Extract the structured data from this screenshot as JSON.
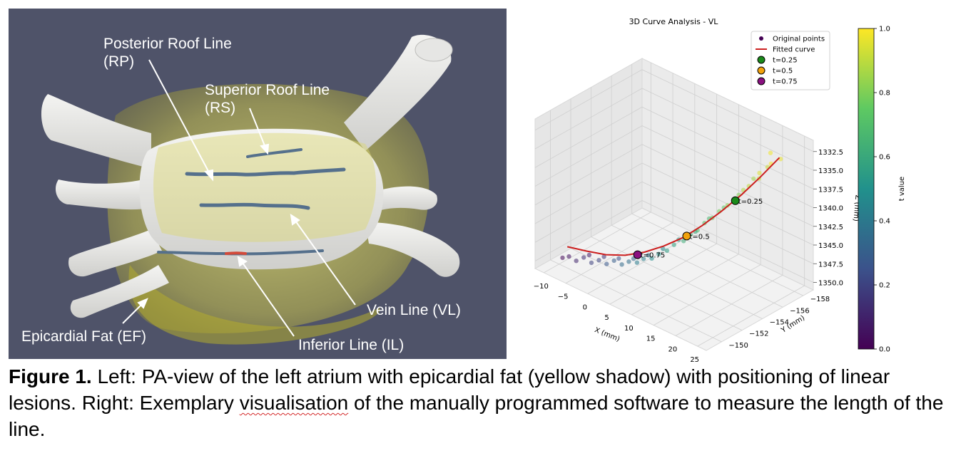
{
  "colors": {
    "render_background": "#4f5369",
    "atrium_surface": "#ededeb",
    "fat_overlay": "#d8d45a",
    "lesion_line": "#55708c",
    "lesion_highlight": "#d24a3a",
    "fitted_curve": "#cc1f1f"
  },
  "figure": {
    "annotations": [
      {
        "id": "rp",
        "lines": [
          "Posterior Roof Line",
          "(RP)"
        ]
      },
      {
        "id": "rs",
        "lines": [
          "Superior Roof Line",
          "(RS)"
        ]
      },
      {
        "id": "vl",
        "lines": [
          "Vein Line (VL)"
        ]
      },
      {
        "id": "il",
        "lines": [
          "Inferior Line (IL)"
        ]
      },
      {
        "id": "ef",
        "lines": [
          "Epicardial Fat (EF)"
        ]
      }
    ]
  },
  "chart_data": {
    "type": "scatter",
    "title": "3D Curve Analysis - VL",
    "xlabel": "X (mm)",
    "ylabel": "Y (mm)",
    "zlabel": "Z (mm)",
    "xlim": [
      -12,
      27
    ],
    "ylim": [
      -159,
      -148.5
    ],
    "zlim": [
      1331,
      1351
    ],
    "z_inverted": true,
    "x_ticks": [
      -10,
      -5,
      0,
      5,
      10,
      15,
      20,
      25
    ],
    "y_ticks": [
      -150,
      -152,
      -154,
      -156,
      -158
    ],
    "z_ticks": [
      "1332.5",
      "1335.0",
      "1337.5",
      "1340.0",
      "1342.5",
      "1345.0",
      "1347.5",
      "1350.0"
    ],
    "colormap": "viridis",
    "colorbar_label": "t value",
    "colorbar_ticks": [
      "0.0",
      "0.2",
      "0.4",
      "0.6",
      "0.8",
      "1.0"
    ],
    "grid": true,
    "legend_position": "top-right",
    "legend": [
      {
        "label": "Original points",
        "marker": "dot",
        "color": "#440154"
      },
      {
        "label": "Fitted curve",
        "marker": "line",
        "color": "#cc1f1f"
      },
      {
        "label": "t=0.25",
        "marker": "circle",
        "color": "#1a8a1a"
      },
      {
        "label": "t=0.5",
        "marker": "circle",
        "color": "#f2a20c"
      },
      {
        "label": "t=0.75",
        "marker": "circle",
        "color": "#8a1080"
      }
    ],
    "fitted_curve": {
      "x": [
        -10,
        -7,
        -4,
        -1,
        2,
        5,
        8,
        11,
        14,
        17,
        20,
        23
      ],
      "y": [
        -150.8,
        -151.4,
        -152.0,
        -152.6,
        -153.2,
        -153.8,
        -154.4,
        -155.0,
        -155.6,
        -156.2,
        -156.8,
        -157.4
      ],
      "z": [
        1349.3,
        1349.5,
        1349.6,
        1349.3,
        1348.5,
        1347.3,
        1345.8,
        1343.8,
        1341.5,
        1339.0,
        1336.2,
        1333.2
      ]
    },
    "markers": [
      {
        "label": "t=0.25",
        "t": 0.25,
        "x": 16.2,
        "y": -156.0,
        "z": 1339.8
      },
      {
        "label": "t=0.5",
        "t": 0.5,
        "x": 8.6,
        "y": -154.5,
        "z": 1345.5
      },
      {
        "label": "t=0.75",
        "t": 0.75,
        "x": 0.9,
        "y": -153.0,
        "z": 1349.0
      }
    ],
    "points": {
      "x": [
        22.0,
        21.2,
        22.8,
        20.3,
        19.5,
        21.0,
        18.6,
        17.8,
        19.2,
        16.5,
        15.6,
        17.0,
        14.4,
        13.5,
        15.0,
        12.2,
        11.3,
        12.8,
        10.2,
        9.3,
        10.8,
        7.8,
        6.9,
        8.4,
        5.5,
        4.6,
        6.0,
        3.2,
        2.4,
        3.8,
        1.0,
        0.1,
        1.6,
        -1.2,
        -2.2,
        -0.6,
        -3.5,
        -4.5,
        -2.8,
        -5.8,
        -6.8,
        -5.0,
        -8.0,
        -9.0
      ],
      "y": [
        -157.0,
        -157.3,
        -157.6,
        -156.6,
        -156.9,
        -157.1,
        -156.3,
        -156.1,
        -156.5,
        -155.8,
        -155.5,
        -156.0,
        -155.2,
        -154.9,
        -155.4,
        -154.7,
        -154.4,
        -154.9,
        -154.2,
        -153.9,
        -154.4,
        -153.6,
        -153.3,
        -153.8,
        -153.1,
        -152.8,
        -153.3,
        -152.6,
        -152.3,
        -152.8,
        -152.1,
        -151.8,
        -152.3,
        -151.6,
        -151.3,
        -151.8,
        -151.1,
        -150.8,
        -151.3,
        -150.6,
        -150.3,
        -150.8,
        -150.1,
        -149.9
      ],
      "z": [
        1334.0,
        1333.0,
        1333.6,
        1335.4,
        1336.6,
        1334.8,
        1337.4,
        1338.0,
        1336.4,
        1339.3,
        1340.2,
        1338.8,
        1341.1,
        1342.0,
        1340.6,
        1342.9,
        1343.9,
        1342.3,
        1344.6,
        1345.5,
        1344.2,
        1346.2,
        1347.0,
        1345.5,
        1347.7,
        1348.3,
        1347.0,
        1348.6,
        1349.1,
        1348.1,
        1349.2,
        1349.6,
        1348.8,
        1349.3,
        1349.8,
        1349.0,
        1349.5,
        1349.9,
        1349.0,
        1349.4,
        1349.9,
        1349.0,
        1349.5,
        1349.8
      ],
      "t": [
        0.99,
        0.98,
        0.97,
        0.95,
        0.93,
        0.92,
        0.9,
        0.88,
        0.86,
        0.84,
        0.82,
        0.8,
        0.78,
        0.76,
        0.74,
        0.71,
        0.69,
        0.67,
        0.64,
        0.62,
        0.6,
        0.57,
        0.55,
        0.53,
        0.5,
        0.48,
        0.46,
        0.43,
        0.41,
        0.39,
        0.36,
        0.34,
        0.32,
        0.29,
        0.27,
        0.24,
        0.21,
        0.19,
        0.16,
        0.13,
        0.11,
        0.08,
        0.05,
        0.02
      ]
    }
  },
  "caption": {
    "label": "Figure 1.",
    "text_before": " Left: PA-view of the left atrium with epicardial fat (yellow shadow) with positioning of linear lesions. Right: Exemplary ",
    "spell_word": "visualisation",
    "text_after": " of the manually programmed software to measure the length of the line."
  }
}
